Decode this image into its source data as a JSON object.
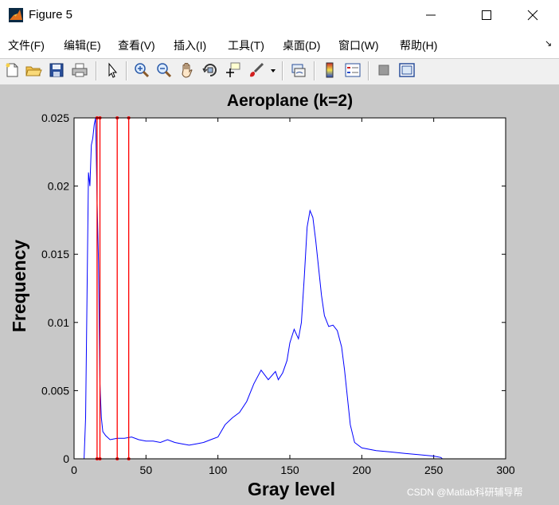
{
  "window": {
    "title": "Figure 5",
    "controls": [
      "minimize",
      "maximize",
      "close"
    ]
  },
  "menubar": {
    "items": [
      {
        "label": "文件(F)"
      },
      {
        "label": "编辑(E)"
      },
      {
        "label": "查看(V)"
      },
      {
        "label": "插入(I)"
      },
      {
        "label": "工具(T)"
      },
      {
        "label": "桌面(D)"
      },
      {
        "label": "窗口(W)"
      },
      {
        "label": "帮助(H)"
      }
    ],
    "dock_glyph": "↘"
  },
  "toolbar": {
    "icons": [
      "new-figure-icon",
      "open-folder-icon",
      "save-icon",
      "print-icon",
      "select-arrow-icon",
      "zoom-in-icon",
      "zoom-out-icon",
      "pan-hand-icon",
      "rotate-3d-icon",
      "data-cursor-icon",
      "brush-icon",
      "brush-dropdown-icon",
      "link-plot-icon",
      "colorbar-icon",
      "legend-icon",
      "hide-plot-tools-icon",
      "show-plot-tools-icon"
    ]
  },
  "chart_data": {
    "type": "line",
    "title": "Aeroplane (k=2)",
    "xlabel": "Gray level",
    "ylabel": "Frequency",
    "xlim": [
      0,
      300
    ],
    "ylim": [
      0,
      0.025
    ],
    "xticks": [
      "0",
      "50",
      "100",
      "150",
      "200",
      "250",
      "300"
    ],
    "yticks": [
      "0",
      "0.005",
      "0.01",
      "0.015",
      "0.02",
      "0.025"
    ],
    "grid": false,
    "series": [
      {
        "color": "#0000ff",
        "points": [
          [
            0,
            0
          ],
          [
            7,
            0
          ],
          [
            8,
            0.003
          ],
          [
            9,
            0.012
          ],
          [
            10,
            0.021
          ],
          [
            11,
            0.02
          ],
          [
            12,
            0.023
          ],
          [
            13,
            0.0235
          ],
          [
            14,
            0.0245
          ],
          [
            15,
            0.025
          ],
          [
            16,
            0.019
          ],
          [
            17,
            0.0145
          ],
          [
            18,
            0.0055
          ],
          [
            19,
            0.003
          ],
          [
            20,
            0.002
          ],
          [
            22,
            0.0017
          ],
          [
            25,
            0.0014
          ],
          [
            30,
            0.0015
          ],
          [
            35,
            0.0015
          ],
          [
            40,
            0.0016
          ],
          [
            45,
            0.0014
          ],
          [
            50,
            0.0013
          ],
          [
            55,
            0.0013
          ],
          [
            60,
            0.0012
          ],
          [
            65,
            0.0014
          ],
          [
            70,
            0.0012
          ],
          [
            75,
            0.0011
          ],
          [
            80,
            0.001
          ],
          [
            85,
            0.0011
          ],
          [
            90,
            0.0012
          ],
          [
            95,
            0.0014
          ],
          [
            100,
            0.0016
          ],
          [
            105,
            0.0025
          ],
          [
            110,
            0.003
          ],
          [
            115,
            0.0034
          ],
          [
            120,
            0.0042
          ],
          [
            125,
            0.0055
          ],
          [
            130,
            0.0065
          ],
          [
            135,
            0.0058
          ],
          [
            140,
            0.0064
          ],
          [
            142,
            0.0058
          ],
          [
            145,
            0.0063
          ],
          [
            148,
            0.0072
          ],
          [
            150,
            0.0085
          ],
          [
            153,
            0.0095
          ],
          [
            156,
            0.0088
          ],
          [
            158,
            0.01
          ],
          [
            160,
            0.0133
          ],
          [
            162,
            0.017
          ],
          [
            164,
            0.0182
          ],
          [
            166,
            0.0177
          ],
          [
            168,
            0.016
          ],
          [
            170,
            0.014
          ],
          [
            172,
            0.012
          ],
          [
            174,
            0.0105
          ],
          [
            177,
            0.0097
          ],
          [
            180,
            0.0098
          ],
          [
            183,
            0.0094
          ],
          [
            186,
            0.0082
          ],
          [
            188,
            0.0065
          ],
          [
            190,
            0.0045
          ],
          [
            192,
            0.0025
          ],
          [
            195,
            0.0012
          ],
          [
            200,
            0.0008
          ],
          [
            210,
            0.0006
          ],
          [
            220,
            0.0005
          ],
          [
            230,
            0.0004
          ],
          [
            240,
            0.0003
          ],
          [
            250,
            0.0002
          ],
          [
            255,
            0.0001
          ],
          [
            256,
            0
          ]
        ]
      },
      {
        "color": "#ff0000",
        "marker": "dot",
        "vertical_lines_x": [
          16,
          18,
          30,
          38
        ]
      }
    ]
  },
  "watermark": "CSDN @Matlab科研辅导帮"
}
